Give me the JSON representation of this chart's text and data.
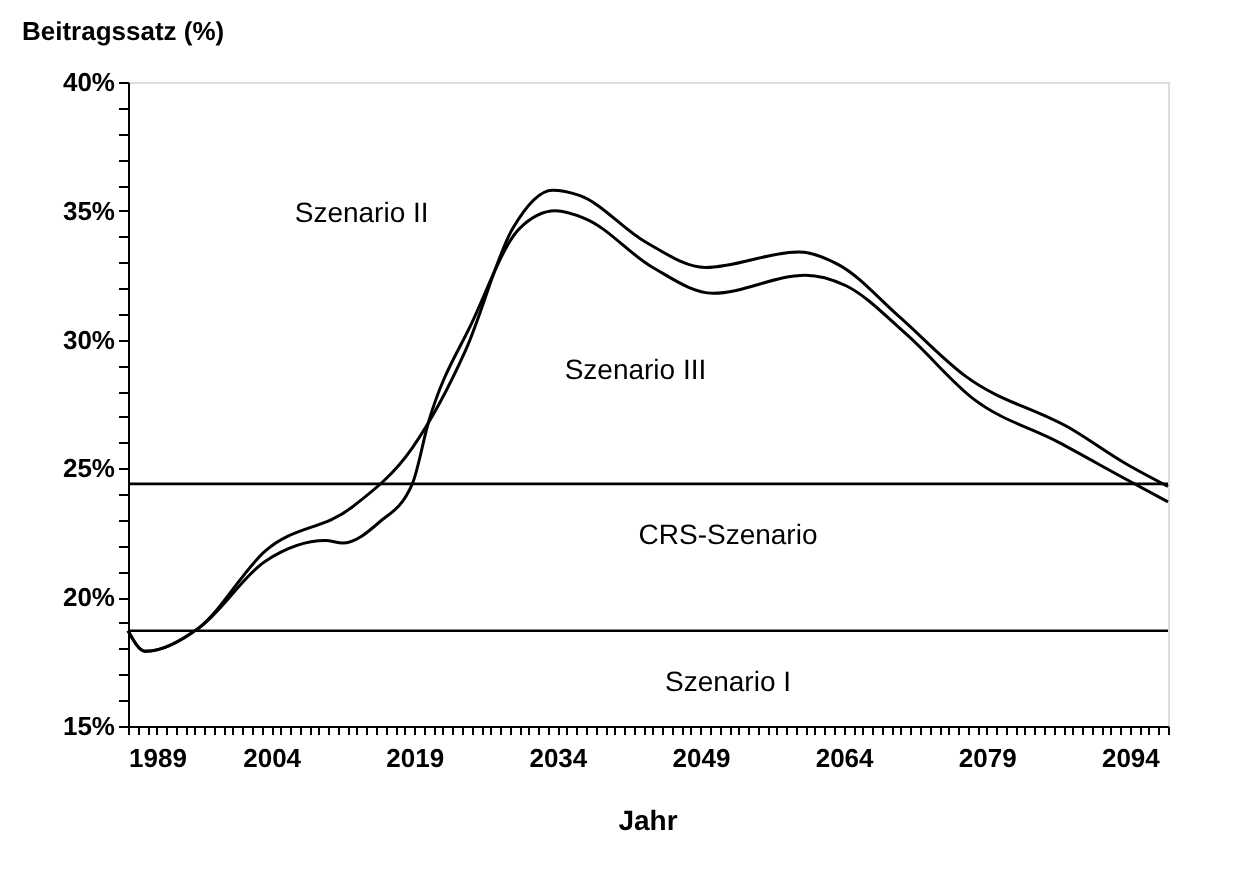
{
  "chart_data": {
    "type": "line",
    "ylabel": "Beitragssatz (%)",
    "xlabel": "Jahr",
    "xlim": [
      1989,
      2098
    ],
    "ylim": [
      15,
      40
    ],
    "xticks": [
      1989,
      {
        "value": 1990,
        "label": null
      },
      {
        "value": 1991,
        "label": null
      },
      {
        "value": 1992,
        "label": null
      },
      {
        "value": 1993,
        "label": null
      },
      {
        "value": 1994,
        "label": null
      },
      {
        "value": 1995,
        "label": null
      },
      {
        "value": 1996,
        "label": null
      },
      {
        "value": 1997,
        "label": null
      },
      {
        "value": 1998,
        "label": null
      },
      {
        "value": 1999,
        "label": null
      },
      {
        "value": 2000,
        "label": null
      },
      {
        "value": 2001,
        "label": null
      },
      {
        "value": 2002,
        "label": null
      },
      {
        "value": 2003,
        "label": null
      },
      2004,
      {
        "value": 2005,
        "label": null
      },
      {
        "value": 2006,
        "label": null
      },
      {
        "value": 2007,
        "label": null
      },
      {
        "value": 2008,
        "label": null
      },
      {
        "value": 2009,
        "label": null
      },
      {
        "value": 2010,
        "label": null
      },
      {
        "value": 2011,
        "label": null
      },
      {
        "value": 2012,
        "label": null
      },
      {
        "value": 2013,
        "label": null
      },
      {
        "value": 2014,
        "label": null
      },
      {
        "value": 2015,
        "label": null
      },
      {
        "value": 2016,
        "label": null
      },
      {
        "value": 2017,
        "label": null
      },
      {
        "value": 2018,
        "label": null
      },
      2019,
      {
        "value": 2020,
        "label": null
      },
      {
        "value": 2021,
        "label": null
      },
      {
        "value": 2022,
        "label": null
      },
      {
        "value": 2023,
        "label": null
      },
      {
        "value": 2024,
        "label": null
      },
      {
        "value": 2025,
        "label": null
      },
      {
        "value": 2026,
        "label": null
      },
      {
        "value": 2027,
        "label": null
      },
      {
        "value": 2028,
        "label": null
      },
      {
        "value": 2029,
        "label": null
      },
      {
        "value": 2030,
        "label": null
      },
      {
        "value": 2031,
        "label": null
      },
      {
        "value": 2032,
        "label": null
      },
      {
        "value": 2033,
        "label": null
      },
      2034,
      {
        "value": 2035,
        "label": null
      },
      {
        "value": 2036,
        "label": null
      },
      {
        "value": 2037,
        "label": null
      },
      {
        "value": 2038,
        "label": null
      },
      {
        "value": 2039,
        "label": null
      },
      {
        "value": 2040,
        "label": null
      },
      {
        "value": 2041,
        "label": null
      },
      {
        "value": 2042,
        "label": null
      },
      {
        "value": 2043,
        "label": null
      },
      {
        "value": 2044,
        "label": null
      },
      {
        "value": 2045,
        "label": null
      },
      {
        "value": 2046,
        "label": null
      },
      {
        "value": 2047,
        "label": null
      },
      {
        "value": 2048,
        "label": null
      },
      2049,
      {
        "value": 2050,
        "label": null
      },
      {
        "value": 2051,
        "label": null
      },
      {
        "value": 2052,
        "label": null
      },
      {
        "value": 2053,
        "label": null
      },
      {
        "value": 2054,
        "label": null
      },
      {
        "value": 2055,
        "label": null
      },
      {
        "value": 2056,
        "label": null
      },
      {
        "value": 2057,
        "label": null
      },
      {
        "value": 2058,
        "label": null
      },
      {
        "value": 2059,
        "label": null
      },
      {
        "value": 2060,
        "label": null
      },
      {
        "value": 2061,
        "label": null
      },
      {
        "value": 2062,
        "label": null
      },
      {
        "value": 2063,
        "label": null
      },
      2064,
      {
        "value": 2065,
        "label": null
      },
      {
        "value": 2066,
        "label": null
      },
      {
        "value": 2067,
        "label": null
      },
      {
        "value": 2068,
        "label": null
      },
      {
        "value": 2069,
        "label": null
      },
      {
        "value": 2070,
        "label": null
      },
      {
        "value": 2071,
        "label": null
      },
      {
        "value": 2072,
        "label": null
      },
      {
        "value": 2073,
        "label": null
      },
      {
        "value": 2074,
        "label": null
      },
      {
        "value": 2075,
        "label": null
      },
      {
        "value": 2076,
        "label": null
      },
      {
        "value": 2077,
        "label": null
      },
      {
        "value": 2078,
        "label": null
      },
      2079,
      {
        "value": 2080,
        "label": null
      },
      {
        "value": 2081,
        "label": null
      },
      {
        "value": 2082,
        "label": null
      },
      {
        "value": 2083,
        "label": null
      },
      {
        "value": 2084,
        "label": null
      },
      {
        "value": 2085,
        "label": null
      },
      {
        "value": 2086,
        "label": null
      },
      {
        "value": 2087,
        "label": null
      },
      {
        "value": 2088,
        "label": null
      },
      {
        "value": 2089,
        "label": null
      },
      {
        "value": 2090,
        "label": null
      },
      {
        "value": 2091,
        "label": null
      },
      {
        "value": 2092,
        "label": null
      },
      {
        "value": 2093,
        "label": null
      },
      2094,
      {
        "value": 2095,
        "label": null
      },
      {
        "value": 2096,
        "label": null
      },
      {
        "value": 2097,
        "label": null
      },
      {
        "value": 2098,
        "label": null
      }
    ],
    "yticks": [
      {
        "value": 15,
        "label": "15%"
      },
      {
        "value": 16,
        "label": null
      },
      {
        "value": 17,
        "label": null
      },
      {
        "value": 18,
        "label": null
      },
      {
        "value": 19,
        "label": null
      },
      {
        "value": 20,
        "label": "20%"
      },
      {
        "value": 21,
        "label": null
      },
      {
        "value": 22,
        "label": null
      },
      {
        "value": 23,
        "label": null
      },
      {
        "value": 24,
        "label": null
      },
      {
        "value": 25,
        "label": "25%"
      },
      {
        "value": 26,
        "label": null
      },
      {
        "value": 27,
        "label": null
      },
      {
        "value": 28,
        "label": null
      },
      {
        "value": 29,
        "label": null
      },
      {
        "value": 30,
        "label": "30%"
      },
      {
        "value": 31,
        "label": null
      },
      {
        "value": 32,
        "label": null
      },
      {
        "value": 33,
        "label": null
      },
      {
        "value": 34,
        "label": null
      },
      {
        "value": 35,
        "label": "35%"
      },
      {
        "value": 36,
        "label": null
      },
      {
        "value": 37,
        "label": null
      },
      {
        "value": 38,
        "label": null
      },
      {
        "value": 39,
        "label": null
      },
      {
        "value": 40,
        "label": "40%"
      }
    ],
    "grid": false,
    "legend": false,
    "line_style": "solid",
    "marker": "none",
    "series": [
      {
        "name": "Szenario II",
        "color": "#000000",
        "x": [
          1989,
          1990.8,
          1996.4,
          2003.4,
          2012.5,
          2018.8,
          2024.4,
          2029.3,
          2033.5,
          2036.3,
          2043.2,
          2049.5,
          2059.3,
          2063.5,
          2069.8,
          2076.7,
          2088,
          2093.5,
          2098
        ],
        "values": [
          18.7,
          17.9,
          18.8,
          21.8,
          23.5,
          25.8,
          29.6,
          34.3,
          35.8,
          35.6,
          33.8,
          32.8,
          33.4,
          32.9,
          30.9,
          28.6,
          26.5,
          25.2,
          24.3
        ]
      },
      {
        "name": "Szenario III",
        "color": "#000000",
        "x": [
          1989,
          1990.8,
          1996.4,
          2003.4,
          2009.7,
          2011.5,
          2015.3,
          2018.8,
          2020.5,
          2025.1,
          2030,
          2033.8,
          2036.9,
          2044,
          2050.3,
          2060,
          2064.2,
          2070.6,
          2077.6,
          2086.6,
          2093.5,
          2098
        ],
        "values": [
          18.7,
          17.9,
          18.8,
          21.4,
          22.2,
          22.1,
          22.9,
          24.4,
          26.8,
          30.7,
          34.3,
          35.0,
          34.7,
          32.8,
          31.8,
          32.5,
          32.1,
          30.2,
          27.7,
          26.0,
          24.6,
          23.7
        ]
      }
    ],
    "ref_lines": [
      {
        "axis": "y",
        "value": 24.4,
        "label": "CRS-Szenario"
      },
      {
        "axis": "y",
        "value": 18.7,
        "label": "Szenario I"
      }
    ]
  }
}
